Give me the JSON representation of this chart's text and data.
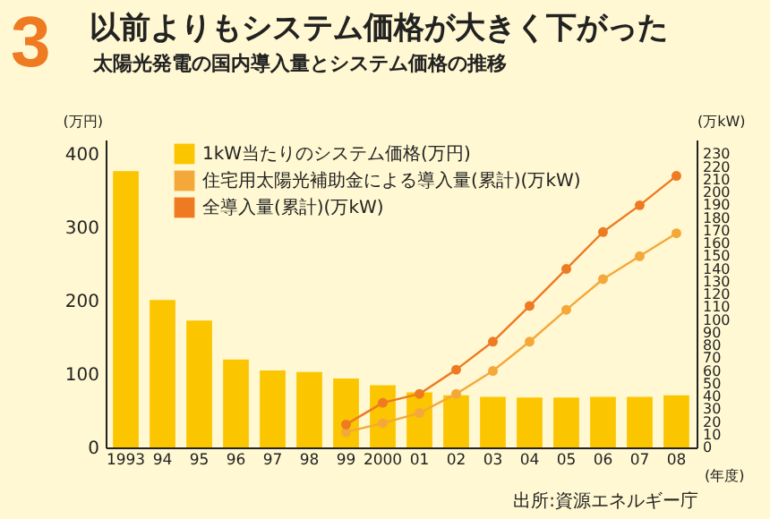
{
  "chart_data": {
    "type": "bar",
    "title": "以前よりもシステム価格が大きく下がった",
    "subtitle": "太陽光発電の国内導入量とシステム価格の推移",
    "xlabel": "(年度)",
    "ylabel": "(万円)",
    "y2label": "(万kW)",
    "annotations": [
      "3",
      "出所:資源エネルギー庁"
    ],
    "categories": [
      "1993",
      "94",
      "95",
      "96",
      "97",
      "98",
      "99",
      "2000",
      "01",
      "02",
      "03",
      "04",
      "05",
      "06",
      "07",
      "08"
    ],
    "series": [
      {
        "name": "1kW当たりのシステム価格(万円)",
        "color": "#fbc500",
        "values": [
          377,
          201,
          173,
          120,
          105,
          103,
          94,
          85,
          75,
          71,
          69,
          68,
          68,
          69,
          69,
          71
        ]
      },
      {
        "name": "住宅用太陽光補助金による導入量(累計)(万kW)",
        "type": "line",
        "axis": "y2",
        "color": "#f5a83a",
        "values": [
          null,
          null,
          null,
          null,
          null,
          null,
          12,
          19,
          27,
          42,
          60,
          83,
          108,
          132,
          150,
          168
        ]
      },
      {
        "name": "全導入量(累計)(万kW)",
        "type": "line",
        "axis": "y2",
        "color": "#ee7a22",
        "values": [
          null,
          null,
          null,
          null,
          null,
          null,
          18,
          35,
          42,
          61,
          83,
          111,
          140,
          169,
          190,
          213
        ]
      }
    ],
    "ylim": [
      0,
      420
    ],
    "yticks": [
      0,
      100,
      200,
      300,
      400
    ],
    "y2lim": [
      0,
      241.5
    ],
    "y2ticks": [
      0,
      10,
      20,
      30,
      40,
      50,
      60,
      70,
      80,
      90,
      100,
      110,
      120,
      130,
      140,
      150,
      160,
      170,
      180,
      190,
      200,
      210,
      220,
      230
    ],
    "legend": "top left",
    "marker": "circle",
    "grid": false
  }
}
